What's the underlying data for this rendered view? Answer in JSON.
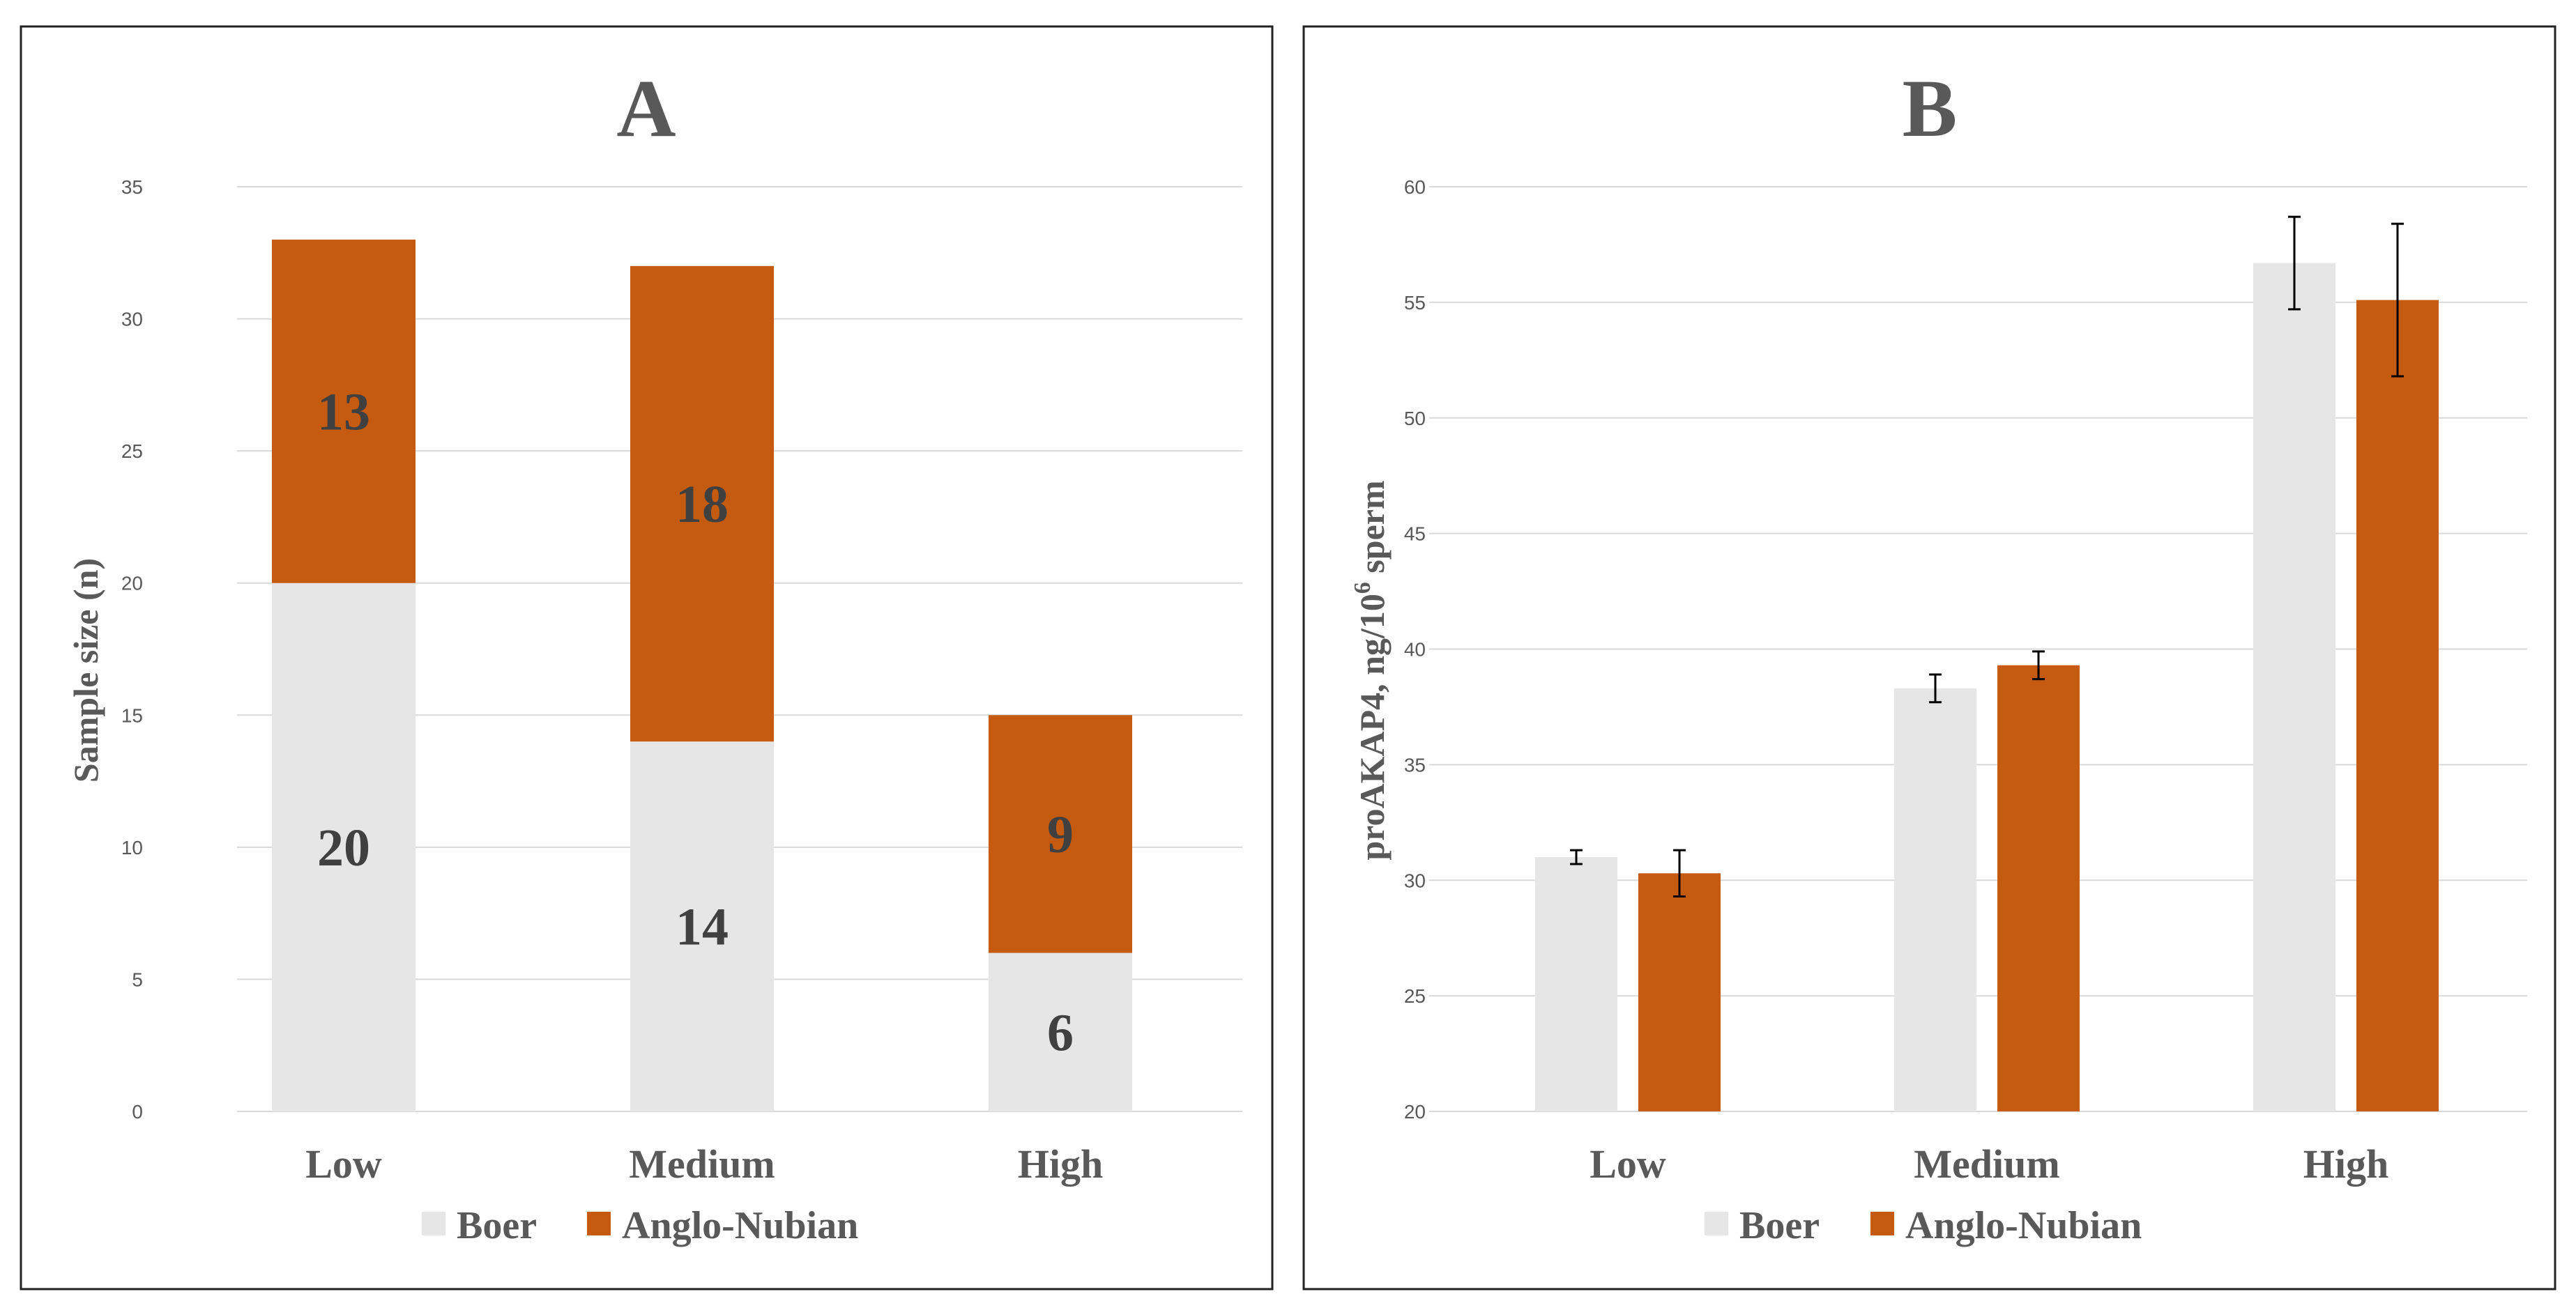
{
  "chart_data": [
    {
      "type": "bar",
      "stacked": true,
      "title": "A",
      "ylabel": "Sample size (n)",
      "xlabel": "",
      "ylim": [
        0,
        35
      ],
      "yticks": [
        "0",
        "5",
        "10",
        "15",
        "20",
        "25",
        "30",
        "35"
      ],
      "categories": [
        "Low",
        "Medium",
        "High"
      ],
      "series": [
        {
          "name": "Boer",
          "color": "#e7e6e6",
          "values": [
            20,
            14,
            6
          ]
        },
        {
          "name": "Anglo-Nubian",
          "color": "#c55a11",
          "values": [
            13,
            18,
            9
          ]
        }
      ],
      "legend": [
        "Boer",
        "Anglo-Nubian"
      ],
      "legend_position": "bottom",
      "grid": true
    },
    {
      "type": "bar",
      "stacked": false,
      "title": "B",
      "ylabel_main": "proAKAP4, ng/10",
      "ylabel_sup": "6",
      "ylabel_tail": " sperm",
      "xlabel": "",
      "ylim": [
        20,
        60
      ],
      "yticks": [
        "20",
        "25",
        "30",
        "35",
        "40",
        "45",
        "50",
        "55",
        "60"
      ],
      "categories": [
        "Low",
        "Medium",
        "High"
      ],
      "series": [
        {
          "name": "Boer",
          "color": "#e7e6e6",
          "values": [
            31.0,
            38.3,
            56.7
          ],
          "errors": [
            0.3,
            0.6,
            2.0
          ]
        },
        {
          "name": "Anglo-Nubian",
          "color": "#c55a11",
          "values": [
            30.3,
            39.3,
            55.1
          ],
          "errors": [
            1.0,
            0.6,
            3.3
          ]
        }
      ],
      "legend": [
        "Boer",
        "Anglo-Nubian"
      ],
      "legend_position": "bottom",
      "grid": true
    }
  ]
}
